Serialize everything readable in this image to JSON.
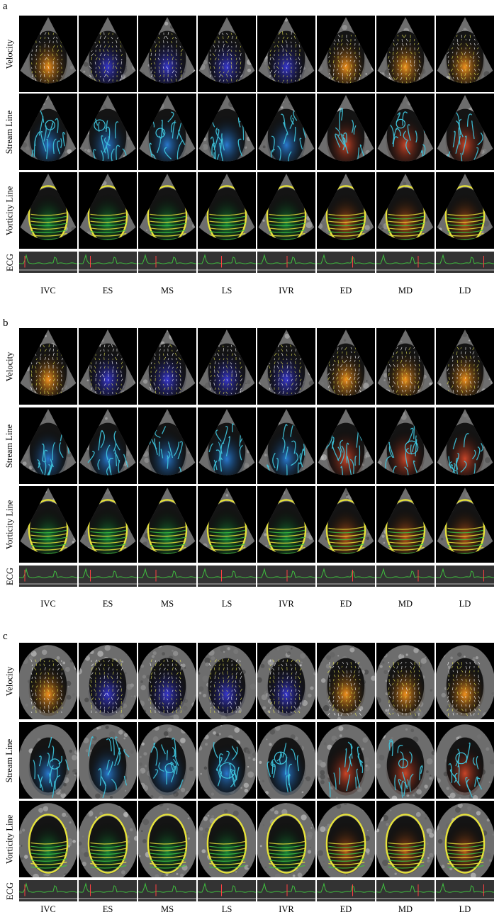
{
  "panels": [
    {
      "letter": "a",
      "kind": "sector"
    },
    {
      "letter": "b",
      "kind": "sector"
    },
    {
      "letter": "c",
      "kind": "circle"
    }
  ],
  "rows": [
    "Velocity",
    "Stream Line",
    "Vorticity Line"
  ],
  "ecg_label": "ECG",
  "phases": [
    "IVC",
    "ES",
    "MS",
    "LS",
    "IVR",
    "ED",
    "MD",
    "LD"
  ],
  "colors": {
    "ecg_trace": "#3fbf3f",
    "ecg_marker": "#ff4040",
    "velocity_warm": "#ff9a1f",
    "velocity_cool": "#3a3ad8",
    "stream": "#3fc8e0",
    "vorticity_yellow": "#e6e23a",
    "vorticity_green": "#3fc03f"
  }
}
